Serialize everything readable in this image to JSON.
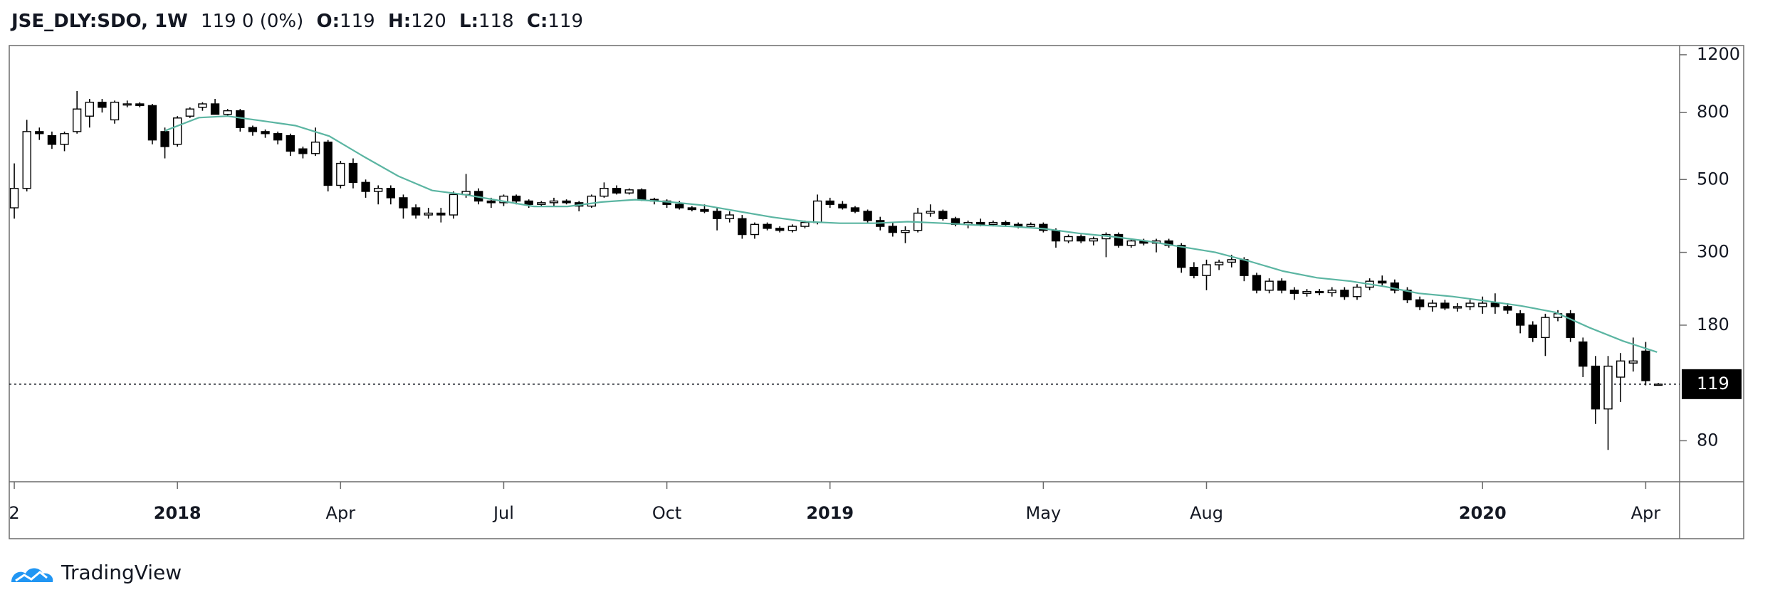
{
  "header": {
    "symbol": "JSE_DLY:SDO, 1W",
    "change": "119 0 (0%)",
    "o_label": "O:",
    "o": 119,
    "h_label": "H:",
    "h": 120,
    "l_label": "L:",
    "l": 118,
    "c_label": "C:",
    "c": 119
  },
  "footer": {
    "brand": "TradingView"
  },
  "chart_data": {
    "type": "candlestick",
    "log_scale": true,
    "ylim": [
      60,
      1280
    ],
    "yticks": [
      1200,
      800,
      500,
      300,
      180,
      80
    ],
    "xlim": [
      -0.4,
      132.7
    ],
    "xticks": [
      {
        "value": 0,
        "label": "2"
      },
      {
        "value": 13,
        "label": "2018"
      },
      {
        "value": 26,
        "label": "Apr"
      },
      {
        "value": 39,
        "label": "Jul"
      },
      {
        "value": 52,
        "label": "Oct"
      },
      {
        "value": 65,
        "label": "2019"
      },
      {
        "value": 82,
        "label": "May"
      },
      {
        "value": 95,
        "label": "Aug"
      },
      {
        "value": 117,
        "label": "2020"
      },
      {
        "value": 130,
        "label": "Apr"
      }
    ],
    "up_color": "#ffffff",
    "down_color": "#000000",
    "last_price": 119,
    "candles": [
      [
        410,
        560,
        380,
        470
      ],
      [
        470,
        760,
        460,
        700
      ],
      [
        700,
        720,
        660,
        690
      ],
      [
        680,
        700,
        620,
        640
      ],
      [
        640,
        700,
        610,
        690
      ],
      [
        700,
        930,
        690,
        820
      ],
      [
        780,
        880,
        720,
        860
      ],
      [
        860,
        880,
        800,
        830
      ],
      [
        760,
        870,
        740,
        860
      ],
      [
        850,
        870,
        830,
        850
      ],
      [
        850,
        860,
        830,
        840
      ],
      [
        840,
        850,
        640,
        660
      ],
      [
        700,
        720,
        580,
        630
      ],
      [
        640,
        780,
        630,
        770
      ],
      [
        780,
        830,
        770,
        820
      ],
      [
        830,
        860,
        810,
        850
      ],
      [
        850,
        880,
        800,
        790
      ],
      [
        790,
        820,
        780,
        810
      ],
      [
        810,
        820,
        700,
        720
      ],
      [
        720,
        730,
        680,
        700
      ],
      [
        700,
        710,
        670,
        690
      ],
      [
        690,
        700,
        640,
        660
      ],
      [
        680,
        690,
        590,
        610
      ],
      [
        620,
        630,
        580,
        600
      ],
      [
        600,
        720,
        590,
        650
      ],
      [
        650,
        660,
        460,
        480
      ],
      [
        480,
        570,
        470,
        560
      ],
      [
        560,
        580,
        470,
        490
      ],
      [
        490,
        500,
        440,
        460
      ],
      [
        460,
        480,
        420,
        470
      ],
      [
        470,
        480,
        420,
        440
      ],
      [
        440,
        450,
        380,
        410
      ],
      [
        410,
        420,
        380,
        390
      ],
      [
        390,
        410,
        380,
        395
      ],
      [
        395,
        410,
        370,
        390
      ],
      [
        390,
        460,
        380,
        450
      ],
      [
        450,
        520,
        440,
        460
      ],
      [
        460,
        470,
        420,
        430
      ],
      [
        430,
        440,
        410,
        425
      ],
      [
        425,
        450,
        415,
        445
      ],
      [
        445,
        450,
        420,
        430
      ],
      [
        430,
        435,
        410,
        420
      ],
      [
        420,
        430,
        415,
        425
      ],
      [
        425,
        440,
        415,
        430
      ],
      [
        430,
        435,
        420,
        425
      ],
      [
        425,
        430,
        400,
        415
      ],
      [
        415,
        450,
        410,
        445
      ],
      [
        445,
        490,
        440,
        470
      ],
      [
        470,
        480,
        450,
        455
      ],
      [
        455,
        470,
        450,
        465
      ],
      [
        465,
        470,
        430,
        435
      ],
      [
        435,
        440,
        420,
        430
      ],
      [
        430,
        435,
        410,
        420
      ],
      [
        420,
        430,
        405,
        410
      ],
      [
        410,
        415,
        400,
        405
      ],
      [
        405,
        420,
        395,
        400
      ],
      [
        400,
        410,
        350,
        380
      ],
      [
        380,
        400,
        370,
        390
      ],
      [
        380,
        390,
        330,
        340
      ],
      [
        340,
        370,
        330,
        365
      ],
      [
        365,
        370,
        350,
        355
      ],
      [
        355,
        360,
        345,
        350
      ],
      [
        350,
        365,
        345,
        360
      ],
      [
        360,
        375,
        355,
        370
      ],
      [
        370,
        450,
        365,
        430
      ],
      [
        430,
        440,
        410,
        420
      ],
      [
        420,
        430,
        405,
        410
      ],
      [
        410,
        415,
        395,
        400
      ],
      [
        400,
        405,
        370,
        375
      ],
      [
        375,
        385,
        350,
        360
      ],
      [
        360,
        370,
        335,
        345
      ],
      [
        345,
        360,
        320,
        350
      ],
      [
        350,
        410,
        345,
        395
      ],
      [
        395,
        420,
        385,
        400
      ],
      [
        400,
        405,
        375,
        380
      ],
      [
        380,
        385,
        360,
        365
      ],
      [
        365,
        375,
        355,
        370
      ],
      [
        370,
        380,
        360,
        365
      ],
      [
        365,
        375,
        360,
        370
      ],
      [
        370,
        375,
        360,
        365
      ],
      [
        365,
        370,
        355,
        360
      ],
      [
        360,
        370,
        355,
        365
      ],
      [
        365,
        370,
        345,
        350
      ],
      [
        350,
        355,
        310,
        325
      ],
      [
        325,
        340,
        320,
        335
      ],
      [
        335,
        340,
        320,
        325
      ],
      [
        325,
        335,
        315,
        330
      ],
      [
        330,
        345,
        290,
        340
      ],
      [
        340,
        345,
        310,
        315
      ],
      [
        315,
        330,
        310,
        325
      ],
      [
        325,
        330,
        315,
        320
      ],
      [
        320,
        330,
        300,
        325
      ],
      [
        325,
        330,
        310,
        315
      ],
      [
        315,
        320,
        260,
        270
      ],
      [
        270,
        280,
        250,
        255
      ],
      [
        255,
        285,
        230,
        275
      ],
      [
        275,
        285,
        265,
        280
      ],
      [
        280,
        295,
        270,
        285
      ],
      [
        285,
        290,
        245,
        255
      ],
      [
        255,
        260,
        225,
        230
      ],
      [
        230,
        250,
        225,
        245
      ],
      [
        245,
        250,
        225,
        230
      ],
      [
        230,
        235,
        215,
        225
      ],
      [
        225,
        232,
        220,
        228
      ],
      [
        228,
        232,
        222,
        226
      ],
      [
        226,
        235,
        220,
        230
      ],
      [
        230,
        235,
        215,
        220
      ],
      [
        220,
        240,
        215,
        235
      ],
      [
        235,
        250,
        230,
        245
      ],
      [
        245,
        255,
        238,
        242
      ],
      [
        242,
        248,
        225,
        230
      ],
      [
        230,
        235,
        210,
        215
      ],
      [
        215,
        220,
        200,
        205
      ],
      [
        205,
        215,
        198,
        210
      ],
      [
        210,
        215,
        200,
        203
      ],
      [
        203,
        210,
        198,
        205
      ],
      [
        205,
        215,
        200,
        210
      ],
      [
        205,
        220,
        195,
        210
      ],
      [
        210,
        225,
        195,
        205
      ],
      [
        205,
        210,
        195,
        200
      ],
      [
        195,
        200,
        170,
        180
      ],
      [
        180,
        185,
        160,
        165
      ],
      [
        165,
        195,
        145,
        190
      ],
      [
        190,
        200,
        185,
        195
      ],
      [
        195,
        200,
        160,
        165
      ],
      [
        160,
        165,
        125,
        135
      ],
      [
        135,
        145,
        90,
        100
      ],
      [
        100,
        145,
        75,
        135
      ],
      [
        125,
        148,
        105,
        140
      ],
      [
        138,
        165,
        130,
        140
      ],
      [
        150,
        160,
        118,
        122
      ],
      [
        119,
        120,
        118,
        119
      ]
    ],
    "series": [
      {
        "color": "#5bb5a2",
        "x": [
          12,
          14.7,
          17,
          19.7,
          22.4,
          25.1,
          27.8,
          30.6,
          33.3,
          36,
          38.7,
          41.4,
          44.1,
          46.8,
          49.5,
          52.3,
          55,
          57.7,
          60.4,
          63.1,
          65.8,
          68.5,
          71.2,
          74,
          76.7,
          79.4,
          82.1,
          84.8,
          87.5,
          90.2,
          93,
          95.7,
          98.4,
          101.1,
          103.8,
          106.5,
          109.2,
          111.9,
          114.6,
          117.4,
          120.1,
          122.8,
          125.5,
          128.2,
          130.9
        ],
        "values": [
          704,
          772,
          780,
          755,
          730,
          678,
          589,
          512,
          463,
          449,
          431,
          414,
          414,
          427,
          434,
          427,
          417,
          400,
          384,
          372,
          368,
          368,
          372,
          368,
          363,
          360,
          354,
          343,
          335,
          325,
          312,
          300,
          282,
          263,
          251,
          245,
          236,
          225,
          220,
          213,
          206,
          197,
          177,
          161,
          149
        ]
      }
    ]
  }
}
